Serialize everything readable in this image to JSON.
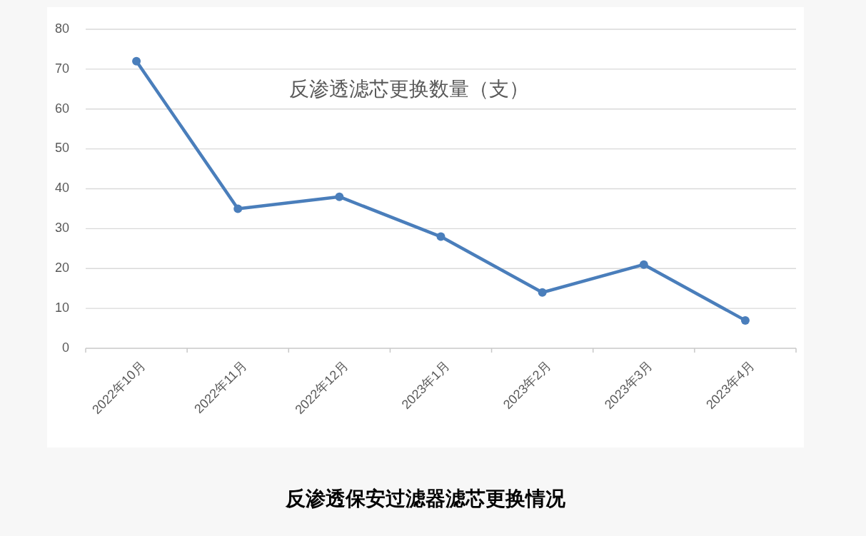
{
  "chart_data": {
    "type": "line",
    "title": "反渗透滤芯更换数量（支）",
    "annotations": [
      "反渗透保安过滤器滤芯更换情况"
    ],
    "categories": [
      "2022年10月",
      "2022年11月",
      "2022年12月",
      "2023年1月",
      "2023年2月",
      "2023年3月",
      "2023年4月"
    ],
    "series": [
      {
        "color": "#4a7ebb",
        "values": [
          72,
          35,
          38,
          28,
          14,
          21,
          7
        ]
      }
    ],
    "ylim": [
      0,
      80
    ],
    "yticks": [
      0,
      10,
      20,
      30,
      40,
      50,
      60,
      70,
      80
    ],
    "grid": "y",
    "marker": "circle",
    "line_style": "solid"
  }
}
